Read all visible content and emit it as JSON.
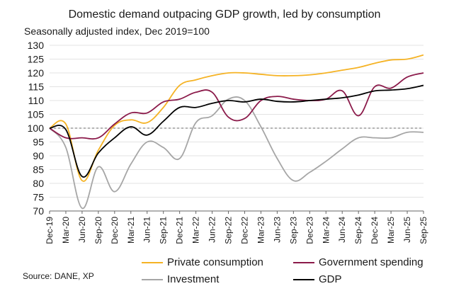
{
  "chart_data": {
    "type": "line",
    "title": "Domestic demand outpacing GDP growth, led by consumption",
    "subtitle": "Seasonally adjusted index, Dec 2019=100",
    "source": "Source: DANE, XP",
    "ylim": [
      70,
      130
    ],
    "yticks": [
      70,
      75,
      80,
      85,
      90,
      95,
      100,
      105,
      110,
      115,
      120,
      125,
      130
    ],
    "reference_line": 100,
    "categories": [
      "Dec-19",
      "Mar-20",
      "Jun-20",
      "Sep-20",
      "Dec-20",
      "Mar-21",
      "Jun-21",
      "Sep-21",
      "Dec-21",
      "Mar-22",
      "Jun-22",
      "Sep-22",
      "Dec-22",
      "Mar-23",
      "Jun-23",
      "Sep-23",
      "Dec-23",
      "Mar-24",
      "Jun-24",
      "Sep-24",
      "Dec-24",
      "Mar-25",
      "Jun-25",
      "Sep-25"
    ],
    "series": [
      {
        "name": "Private consumption",
        "color": "#F5B325",
        "values": [
          100,
          101.5,
          81,
          92,
          101,
          103,
          102,
          107.5,
          115.5,
          117.5,
          119,
          120,
          120,
          119.5,
          119,
          119,
          119.3,
          120,
          121,
          122,
          123.5,
          124.7,
          125,
          126.5
        ]
      },
      {
        "name": "Government spending",
        "color": "#8B1A4A",
        "values": [
          100,
          96.5,
          96.5,
          96.5,
          101.5,
          105.5,
          105.5,
          109.5,
          110.5,
          113,
          113,
          104,
          103.5,
          110,
          111.5,
          110.5,
          110,
          110.5,
          113.5,
          104.5,
          115,
          114.5,
          118.5,
          120
        ]
      },
      {
        "name": "Investment",
        "color": "#A6A6A6",
        "values": [
          100,
          93,
          71,
          86,
          77,
          87,
          95,
          93,
          89,
          102,
          104.5,
          110.5,
          110,
          100.5,
          89,
          81,
          84,
          88,
          92.5,
          96.5,
          96.5,
          96.5,
          98.5,
          98.5
        ]
      },
      {
        "name": "GDP",
        "color": "#000000",
        "values": [
          100,
          99.5,
          82.5,
          91,
          96.5,
          100.5,
          97.5,
          102.5,
          107.5,
          107.5,
          109,
          110,
          109.5,
          110.5,
          109.7,
          109.5,
          110,
          110.5,
          111,
          112,
          113.5,
          113.8,
          114.3,
          115.5
        ]
      }
    ]
  },
  "legend": {
    "private_consumption": "Private consumption",
    "government_spending": "Government spending",
    "investment": "Investment",
    "gdp": "GDP"
  }
}
